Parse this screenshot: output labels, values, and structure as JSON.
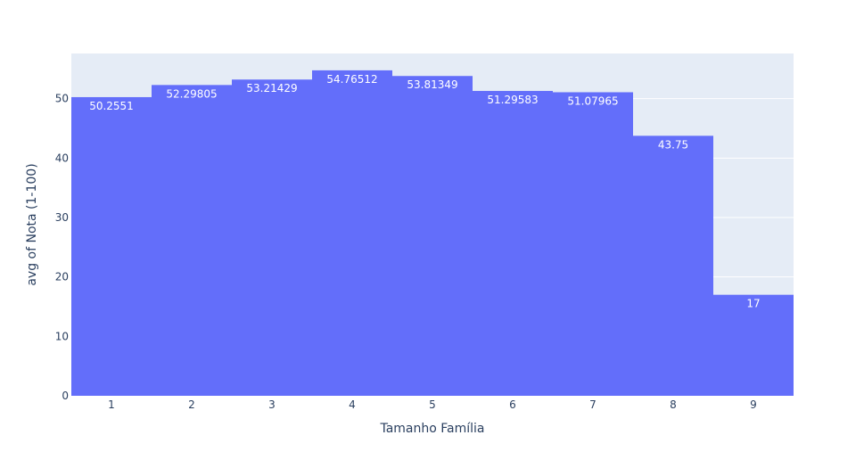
{
  "chart_data": {
    "type": "bar",
    "xlabel": "Tamanho Família",
    "ylabel": "avg of Nota (1-100)",
    "categories": [
      "1",
      "2",
      "3",
      "4",
      "5",
      "6",
      "7",
      "8",
      "9"
    ],
    "values": [
      50.2551,
      52.29805,
      53.21429,
      54.76512,
      53.81349,
      51.29583,
      51.07965,
      43.75,
      17
    ],
    "value_labels": [
      "50.2551",
      "52.29805",
      "53.21429",
      "54.76512",
      "53.81349",
      "51.29583",
      "51.07965",
      "43.75",
      "17"
    ],
    "y_ticks": [
      0,
      10,
      20,
      30,
      40,
      50
    ],
    "ylim": [
      0,
      57.6
    ],
    "grid": true,
    "colors": {
      "bar": "#636efa",
      "plot_background": "#e5ecf6",
      "grid": "#ffffff",
      "text": "#2a3f5f",
      "bar_label": "#ffffff"
    }
  }
}
